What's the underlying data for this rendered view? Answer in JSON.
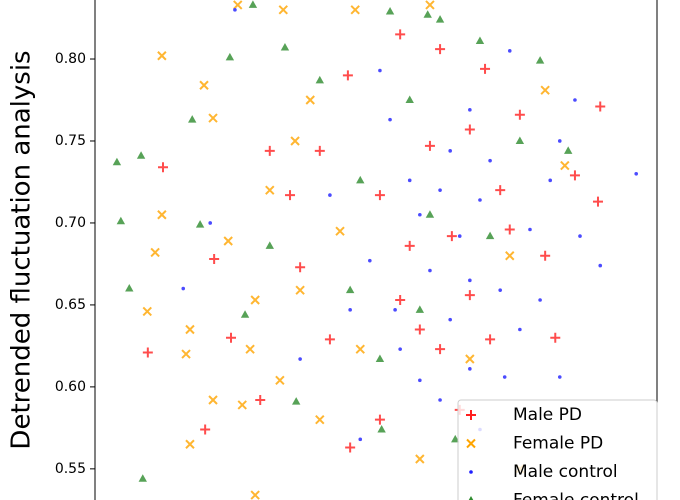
{
  "chart_data": {
    "type": "scatter",
    "ylabel": "Detrended fluctuation analysis",
    "xlim": [
      0,
      1
    ],
    "ylim": [
      0.531,
      0.836
    ],
    "yticks": [
      {
        "value": 0.55,
        "label": "0.55"
      },
      {
        "value": 0.6,
        "label": "0.60"
      },
      {
        "value": 0.65,
        "label": "0.65"
      },
      {
        "value": 0.7,
        "label": "0.70"
      },
      {
        "value": 0.75,
        "label": "0.75"
      },
      {
        "value": 0.8,
        "label": "0.80"
      }
    ],
    "legend": "lower right",
    "series": [
      {
        "name": "Male PD",
        "color": "#ff2020",
        "marker": "plus",
        "x": [
          0.121,
          0.094,
          0.212,
          0.242,
          0.4,
          0.45,
          0.543,
          0.596,
          0.635,
          0.667,
          0.721,
          0.756,
          0.801,
          0.854,
          0.899,
          0.895,
          0.819,
          0.578,
          0.507,
          0.454,
          0.365,
          0.311,
          0.294,
          0.196,
          0.614,
          0.694,
          0.56,
          0.649,
          0.418,
          0.507,
          0.703,
          0.614,
          0.738,
          0.347,
          0.543,
          0.667
        ],
        "values": [
          0.734,
          0.621,
          0.678,
          0.63,
          0.744,
          0.79,
          0.815,
          0.747,
          0.692,
          0.656,
          0.72,
          0.766,
          0.68,
          0.729,
          0.771,
          0.713,
          0.63,
          0.635,
          0.58,
          0.563,
          0.673,
          0.744,
          0.592,
          0.574,
          0.806,
          0.794,
          0.686,
          0.586,
          0.629,
          0.717,
          0.629,
          0.623,
          0.696,
          0.717,
          0.653,
          0.757
        ]
      },
      {
        "name": "Female PD",
        "color": "#ffa500",
        "marker": "x",
        "x": [
          0.119,
          0.254,
          0.335,
          0.194,
          0.21,
          0.119,
          0.107,
          0.093,
          0.162,
          0.169,
          0.21,
          0.262,
          0.285,
          0.311,
          0.356,
          0.383,
          0.463,
          0.596,
          0.436,
          0.4,
          0.169,
          0.285,
          0.237,
          0.276,
          0.756,
          0.801,
          0.836,
          0.738,
          0.667,
          0.578,
          0.365,
          0.472,
          0.329
        ],
        "values": [
          0.802,
          0.833,
          0.83,
          0.784,
          0.764,
          0.705,
          0.682,
          0.646,
          0.62,
          0.635,
          0.592,
          0.589,
          0.653,
          0.72,
          0.75,
          0.775,
          0.83,
          0.833,
          0.695,
          0.58,
          0.565,
          0.534,
          0.689,
          0.623,
          0.55,
          0.781,
          0.735,
          0.68,
          0.617,
          0.556,
          0.659,
          0.623,
          0.604
        ]
      },
      {
        "name": "Male control",
        "color": "#1f1fff",
        "marker": "dot",
        "x": [
          0.963,
          0.205,
          0.157,
          0.854,
          0.899,
          0.827,
          0.667,
          0.685,
          0.721,
          0.756,
          0.632,
          0.596,
          0.56,
          0.525,
          0.614,
          0.667,
          0.774,
          0.81,
          0.489,
          0.454,
          0.543,
          0.649,
          0.703,
          0.729,
          0.578,
          0.507,
          0.632,
          0.792,
          0.685,
          0.472,
          0.418,
          0.365,
          0.578,
          0.863,
          0.738,
          0.614,
          0.667,
          0.534,
          0.827,
          0.249
        ],
        "values": [
          0.73,
          0.7,
          0.66,
          0.775,
          0.674,
          0.606,
          0.769,
          0.714,
          0.659,
          0.635,
          0.641,
          0.671,
          0.726,
          0.763,
          0.592,
          0.611,
          0.696,
          0.726,
          0.677,
          0.647,
          0.623,
          0.692,
          0.738,
          0.606,
          0.604,
          0.793,
          0.744,
          0.653,
          0.574,
          0.568,
          0.717,
          0.617,
          0.705,
          0.692,
          0.805,
          0.72,
          0.665,
          0.647,
          0.75,
          0.83
        ]
      },
      {
        "name": "Female control",
        "color": "#2e8b2e",
        "marker": "triangle",
        "x": [
          0.039,
          0.046,
          0.082,
          0.061,
          0.085,
          0.173,
          0.24,
          0.281,
          0.525,
          0.592,
          0.614,
          0.338,
          0.311,
          0.267,
          0.358,
          0.4,
          0.472,
          0.51,
          0.578,
          0.685,
          0.756,
          0.792,
          0.842,
          0.641,
          0.596,
          0.507,
          0.703,
          0.454,
          0.187,
          0.56
        ],
        "values": [
          0.737,
          0.701,
          0.741,
          0.66,
          0.544,
          0.763,
          0.801,
          0.833,
          0.829,
          0.827,
          0.824,
          0.807,
          0.686,
          0.644,
          0.591,
          0.787,
          0.726,
          0.574,
          0.647,
          0.811,
          0.75,
          0.799,
          0.744,
          0.568,
          0.705,
          0.617,
          0.692,
          0.659,
          0.699,
          0.775
        ]
      }
    ]
  }
}
